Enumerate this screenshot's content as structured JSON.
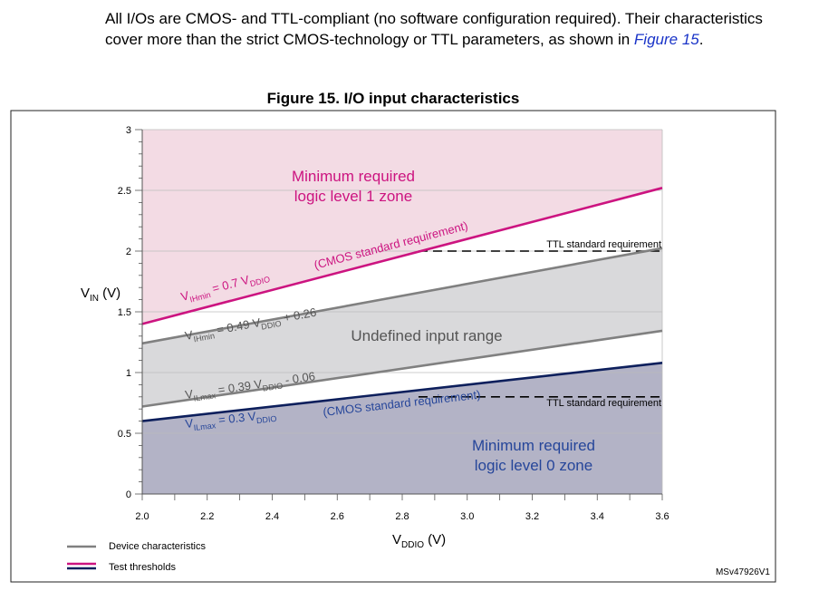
{
  "intro": {
    "text_before": "All I/Os are CMOS- and TTL-compliant (no software configuration required). Their characteristics cover more than the strict CMOS-technology or TTL parameters, as shown in ",
    "link": "Figure 15",
    "text_after": "."
  },
  "colors": {
    "magenta": "#cc1480",
    "navy": "#0d1f5c",
    "grey_line": "#808080",
    "blue_text": "#26469a",
    "zone1_fill": "#f3dbe4",
    "undefined_fill": "#d9d9db",
    "zone0_fill": "#b3b3c6"
  },
  "chart_data": {
    "type": "line",
    "title": "Figure 15. I/O input characteristics",
    "xlabel": "VDDIO (V)",
    "ylabel": "VIN (V)",
    "xlim": [
      2.0,
      3.6
    ],
    "ylim": [
      0,
      3
    ],
    "xticks": [
      "2.0",
      "2.2",
      "2.4",
      "2.6",
      "2.8",
      "3.0",
      "3.2",
      "3.4",
      "3.6"
    ],
    "yticks": [
      "0",
      "0.5",
      "1",
      "1.5",
      "2",
      "2.5",
      "3"
    ],
    "series": [
      {
        "name": "VIHmin = 0.7 VDDIO",
        "group": "Test thresholds",
        "x": [
          2.0,
          3.6
        ],
        "y": [
          1.4,
          2.52
        ]
      },
      {
        "name": "VIHmin = 0.49 VDDIO + 0.26",
        "group": "Device characteristics",
        "x": [
          2.0,
          3.6
        ],
        "y": [
          1.24,
          2.024
        ]
      },
      {
        "name": "VILmax = 0.39 VDDIO - 0.06",
        "group": "Device characteristics",
        "x": [
          2.0,
          3.6
        ],
        "y": [
          0.72,
          1.344
        ]
      },
      {
        "name": "VILmax = 0.3 VDDIO",
        "group": "Test thresholds",
        "x": [
          2.0,
          3.6
        ],
        "y": [
          0.6,
          1.08
        ]
      }
    ],
    "ttl_high": {
      "label": "TTL standard requirement",
      "value": 2.0,
      "x_start": 2.85
    },
    "ttl_low": {
      "label": "TTL standard requirement",
      "value": 0.8,
      "x_start": 2.85
    },
    "zones": {
      "zone1": [
        "Minimum required",
        "logic level 1 zone"
      ],
      "undefined": "Undefined input range",
      "zone0": [
        "Minimum required",
        "logic level 0 zone"
      ]
    },
    "annotations": {
      "cmos_high": "(CMOS standard requirement)",
      "cmos_low": "(CMOS standard requirement)"
    },
    "line_labels": {
      "vih_test": {
        "v": "V",
        "sub": "IHmin",
        "eq": " = 0.7 V",
        "sub2": "DDIO",
        "rest": ""
      },
      "vih_dev": {
        "v": "V",
        "sub": "IHmin",
        "eq": " = 0.49 V",
        "sub2": "DDIO",
        "rest": " + 0.26"
      },
      "vil_dev": {
        "v": "V",
        "sub": "ILmax",
        "eq": " = 0.39 V",
        "sub2": "DDIO",
        "rest": " - 0.06"
      },
      "vil_test": {
        "v": "V",
        "sub": "ILmax",
        "eq": " = 0.3 V",
        "sub2": "DDIO",
        "rest": ""
      }
    },
    "axis_labels": {
      "y": {
        "main": "V",
        "sub": "IN",
        "unit": " (V)"
      },
      "x": {
        "main": "V",
        "sub": "DDIO",
        "unit": " (V)"
      }
    },
    "legend": [
      "Device characteristics",
      "Test thresholds"
    ],
    "ref": "MSv47926V1"
  }
}
